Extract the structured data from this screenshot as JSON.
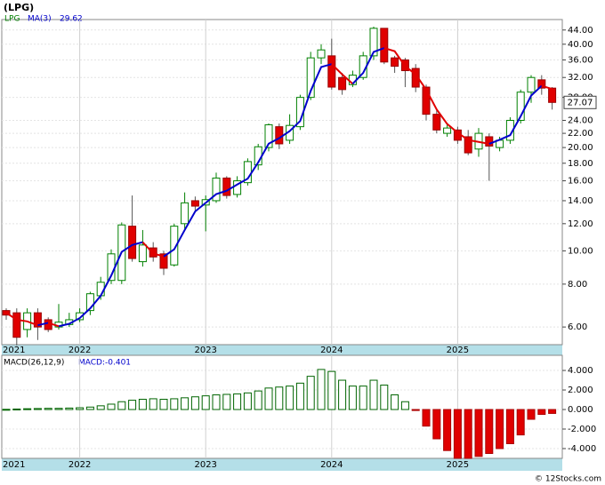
{
  "chart_data": [
    {
      "type": "candlestick",
      "title": "(LPG)",
      "legend": "LPG",
      "categories": [
        "2021",
        null,
        null,
        null,
        null,
        null,
        null,
        "2022",
        null,
        null,
        null,
        null,
        null,
        null,
        null,
        null,
        null,
        null,
        null,
        "2023",
        null,
        null,
        null,
        null,
        null,
        null,
        null,
        null,
        null,
        null,
        null,
        "2024",
        null,
        null,
        null,
        null,
        null,
        null,
        null,
        null,
        null,
        null,
        null,
        "2025",
        null,
        null,
        null,
        null,
        null,
        null,
        null,
        null,
        null
      ],
      "open": [
        6.7,
        6.6,
        5.9,
        6.6,
        6.3,
        6.0,
        6.1,
        6.3,
        6.7,
        7.4,
        8.2,
        8.2,
        11.8,
        9.3,
        10.2,
        9.8,
        9.1,
        12.0,
        14.0,
        13.6,
        14.0,
        16.3,
        14.6,
        15.8,
        17.8,
        20.0,
        23.0,
        21.0,
        23.0,
        28.0,
        36.5,
        37.0,
        32.0,
        30.5,
        32.0,
        37.0,
        44.5,
        36.5,
        36.0,
        34.0,
        30.0,
        25.0,
        22.0,
        22.5,
        21.5,
        19.8,
        21.5,
        20.0,
        21.0,
        24.0,
        29.0,
        31.5,
        29.8
      ],
      "high": [
        6.8,
        6.8,
        6.8,
        6.8,
        6.4,
        7.0,
        6.6,
        6.8,
        7.6,
        8.4,
        10.1,
        12.1,
        14.5,
        11.5,
        10.6,
        10.0,
        12.0,
        14.8,
        14.4,
        14.5,
        16.9,
        16.5,
        16.5,
        18.6,
        20.5,
        23.5,
        23.5,
        25.0,
        28.5,
        38.0,
        40.0,
        41.5,
        33.0,
        33.5,
        38.0,
        45.0,
        44.5,
        37.0,
        36.5,
        35.0,
        30.5,
        26.0,
        23.5,
        23.0,
        22.5,
        22.8,
        22.0,
        21.5,
        24.5,
        29.5,
        32.5,
        32.5,
        30.0
      ],
      "low": [
        6.3,
        5.3,
        5.6,
        5.5,
        5.8,
        5.9,
        6.0,
        6.2,
        6.5,
        7.2,
        8.0,
        8.0,
        9.3,
        9.0,
        9.3,
        8.5,
        9.0,
        11.6,
        13.0,
        11.4,
        13.8,
        14.2,
        14.3,
        15.5,
        17.2,
        19.5,
        19.8,
        20.5,
        22.5,
        27.5,
        35.0,
        29.5,
        28.5,
        30.0,
        31.5,
        36.0,
        35.0,
        33.0,
        30.0,
        29.0,
        24.0,
        22.0,
        21.5,
        20.5,
        19.0,
        18.8,
        16.0,
        19.5,
        20.5,
        23.5,
        27.0,
        28.5,
        25.8
      ],
      "close": [
        6.5,
        5.6,
        6.6,
        6.0,
        5.9,
        6.2,
        6.3,
        6.6,
        7.5,
        8.1,
        9.8,
        11.9,
        9.5,
        10.4,
        9.6,
        8.9,
        11.8,
        13.8,
        13.5,
        14.1,
        16.3,
        14.5,
        16.0,
        18.2,
        20.1,
        23.3,
        20.5,
        23.2,
        28.0,
        36.5,
        38.5,
        30.0,
        29.5,
        32.5,
        37.0,
        44.5,
        35.5,
        34.5,
        33.5,
        30.0,
        25.0,
        22.5,
        22.8,
        21.0,
        19.3,
        22.0,
        20.2,
        21.0,
        24.0,
        29.0,
        32.0,
        29.8,
        27.07
      ],
      "up_color": "#008000",
      "down_color": "#e00000",
      "ma": {
        "name": "MA(3)",
        "up_color": "#0000cc",
        "down_color": "#e00000",
        "values": [
          6.6,
          6.3,
          6.23,
          6.07,
          6.17,
          6.03,
          6.13,
          6.37,
          6.8,
          7.4,
          8.47,
          9.93,
          10.4,
          10.6,
          9.83,
          9.63,
          10.1,
          11.5,
          13.03,
          13.8,
          14.63,
          14.97,
          15.6,
          16.23,
          18.1,
          20.53,
          21.3,
          22.33,
          23.9,
          29.23,
          34.33,
          35.0,
          32.67,
          30.67,
          33.0,
          38.0,
          39.0,
          38.17,
          34.5,
          32.67,
          29.5,
          25.83,
          23.43,
          22.1,
          21.03,
          20.77,
          20.5,
          21.07,
          21.73,
          24.67,
          28.33,
          30.27,
          29.62
        ]
      },
      "log_scale": true,
      "ylim": [
        5.33,
        47.2
      ],
      "grid": true,
      "yticks": [
        {
          "value": 6,
          "label": "6.00"
        },
        {
          "value": 8,
          "label": "8.00"
        },
        {
          "value": 10,
          "label": "10.00"
        },
        {
          "value": 12,
          "label": "12.00"
        },
        {
          "value": 14,
          "label": "14.00"
        },
        {
          "value": 16,
          "label": "16.00"
        },
        {
          "value": 18,
          "label": "18.00"
        },
        {
          "value": 20,
          "label": "20.00"
        },
        {
          "value": 22,
          "label": "22.00"
        },
        {
          "value": 24,
          "label": "24.00"
        },
        {
          "value": 28,
          "label": "28.00"
        },
        {
          "value": 32,
          "label": "32.00"
        },
        {
          "value": 36,
          "label": "36.00"
        },
        {
          "value": 40,
          "label": "40.00"
        },
        {
          "value": 44,
          "label": "44.00"
        }
      ]
    },
    {
      "type": "bar",
      "title": "MACD(26,12,9)",
      "legend": "MACD:-0.401",
      "categories": [
        "2021",
        null,
        null,
        null,
        null,
        null,
        null,
        "2022",
        null,
        null,
        null,
        null,
        null,
        null,
        null,
        null,
        null,
        null,
        null,
        "2023",
        null,
        null,
        null,
        null,
        null,
        null,
        null,
        null,
        null,
        null,
        null,
        "2024",
        null,
        null,
        null,
        null,
        null,
        null,
        null,
        null,
        null,
        null,
        null,
        "2025",
        null,
        null,
        null,
        null,
        null,
        null,
        null,
        null,
        null
      ],
      "values": [
        0.02,
        0.05,
        0.08,
        0.1,
        0.12,
        0.12,
        0.15,
        0.18,
        0.25,
        0.38,
        0.55,
        0.8,
        0.95,
        1.05,
        1.1,
        1.05,
        1.1,
        1.2,
        1.3,
        1.4,
        1.5,
        1.55,
        1.6,
        1.7,
        1.9,
        2.2,
        2.3,
        2.4,
        2.7,
        3.4,
        4.1,
        3.9,
        3.0,
        2.4,
        2.4,
        3.0,
        2.5,
        1.5,
        0.8,
        -0.1,
        -1.7,
        -3.0,
        -4.2,
        -5.0,
        -5.0,
        -4.8,
        -4.5,
        -4.0,
        -3.5,
        -2.6,
        -1.0,
        -0.5,
        -0.401
      ],
      "up_color": "#006400",
      "down_color": "#e00000",
      "ylim": [
        -5.0,
        5.55
      ],
      "grid": true,
      "yticks": [
        {
          "value": -4,
          "label": "-4.000"
        },
        {
          "value": -2,
          "label": "-2.000"
        },
        {
          "value": 0,
          "label": "0.000"
        },
        {
          "value": 2,
          "label": "2.000"
        },
        {
          "value": 4,
          "label": "4.000"
        }
      ]
    }
  ],
  "footer": "© 12Stocks.com"
}
